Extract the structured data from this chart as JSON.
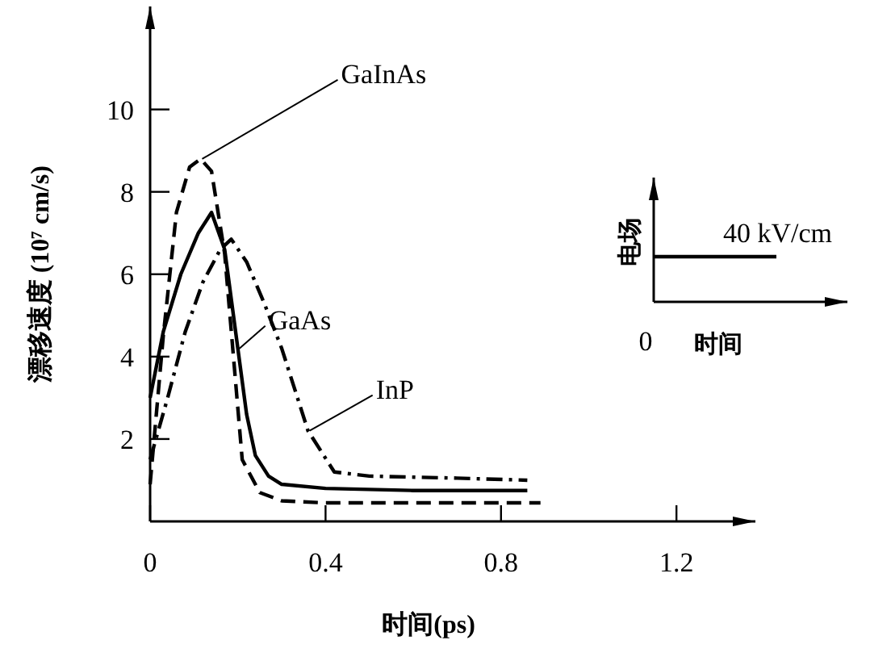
{
  "chart_data": [
    {
      "type": "line",
      "xlabel": "时间(ps)",
      "ylabel": "漂移速度 (10⁷ cm/s)",
      "xlim": [
        0,
        1.38
      ],
      "ylim": [
        0,
        12.5
      ],
      "xticks": [
        0,
        0.4,
        0.8,
        1.2
      ],
      "yticks": [
        2,
        4,
        6,
        8,
        10
      ],
      "grid": false,
      "series": [
        {
          "name": "GaInAs",
          "color": "#000000",
          "line_style": "dashed",
          "x": [
            0,
            0.03,
            0.06,
            0.09,
            0.115,
            0.14,
            0.17,
            0.19,
            0.21,
            0.25,
            0.3,
            0.4,
            0.6,
            0.89
          ],
          "values": [
            0.9,
            4.5,
            7.5,
            8.6,
            8.8,
            8.5,
            6.5,
            4.0,
            1.5,
            0.7,
            0.5,
            0.45,
            0.45,
            0.45
          ]
        },
        {
          "name": "GaAs",
          "color": "#000000",
          "line_style": "solid",
          "x": [
            0,
            0.03,
            0.07,
            0.11,
            0.14,
            0.17,
            0.2,
            0.22,
            0.24,
            0.27,
            0.3,
            0.4,
            0.6,
            0.86
          ],
          "values": [
            3.0,
            4.6,
            6.0,
            7.0,
            7.5,
            6.6,
            4.2,
            2.6,
            1.6,
            1.1,
            0.9,
            0.8,
            0.75,
            0.75
          ]
        },
        {
          "name": "InP",
          "color": "#000000",
          "line_style": "dashdot",
          "x": [
            0,
            0.04,
            0.08,
            0.12,
            0.16,
            0.185,
            0.22,
            0.26,
            0.3,
            0.36,
            0.42,
            0.5,
            0.7,
            0.86
          ],
          "values": [
            1.5,
            3.0,
            4.6,
            5.8,
            6.6,
            6.85,
            6.3,
            5.3,
            4.2,
            2.2,
            1.2,
            1.1,
            1.05,
            1.0
          ]
        }
      ]
    },
    {
      "type": "other",
      "xlabel": "时间",
      "ylabel": "电场",
      "annotations": [
        "0",
        "40 kV/cm"
      ]
    }
  ]
}
